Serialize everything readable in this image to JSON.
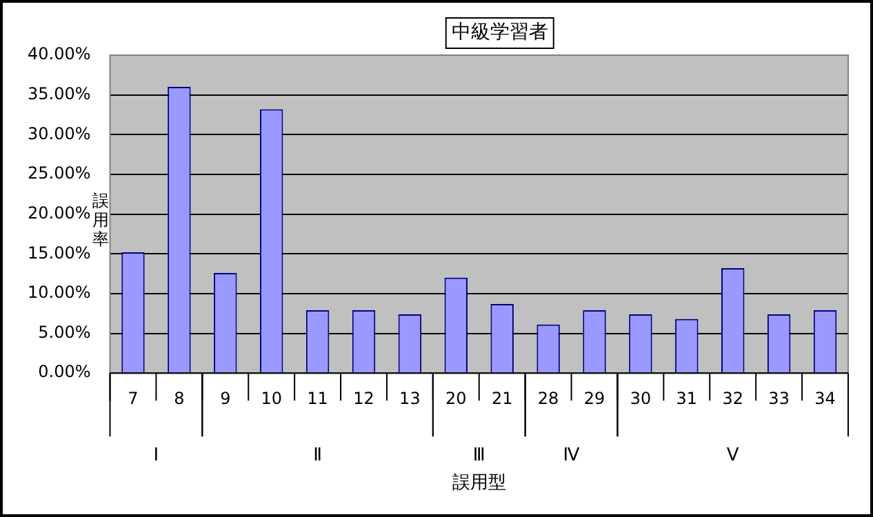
{
  "chart_data": {
    "type": "bar",
    "title": "中級学習者",
    "xlabel": "誤用型",
    "ylabel": "誤用率",
    "categories": [
      "7",
      "8",
      "9",
      "10",
      "11",
      "12",
      "13",
      "20",
      "21",
      "28",
      "29",
      "30",
      "31",
      "32",
      "33",
      "34"
    ],
    "values": [
      15.2,
      36.0,
      12.6,
      33.2,
      7.9,
      7.9,
      7.4,
      12.0,
      8.7,
      6.1,
      7.9,
      7.4,
      6.8,
      13.2,
      7.4,
      7.9
    ],
    "color": "#9999ff",
    "ylim": [
      0,
      40
    ],
    "yticks": [
      {
        "value": 0,
        "label": "0.00%"
      },
      {
        "value": 5,
        "label": "5.00%"
      },
      {
        "value": 10,
        "label": "10.00%"
      },
      {
        "value": 15,
        "label": "15.00%"
      },
      {
        "value": 20,
        "label": "20.00%"
      },
      {
        "value": 25,
        "label": "25.00%"
      },
      {
        "value": 30,
        "label": "30.00%"
      },
      {
        "value": 35,
        "label": "35.00%"
      },
      {
        "value": 40,
        "label": "40.00%"
      }
    ],
    "grid": "y",
    "legend": false,
    "annotations": [
      "Ⅰ",
      "Ⅱ",
      "Ⅲ",
      "Ⅳ",
      "Ⅴ"
    ]
  }
}
